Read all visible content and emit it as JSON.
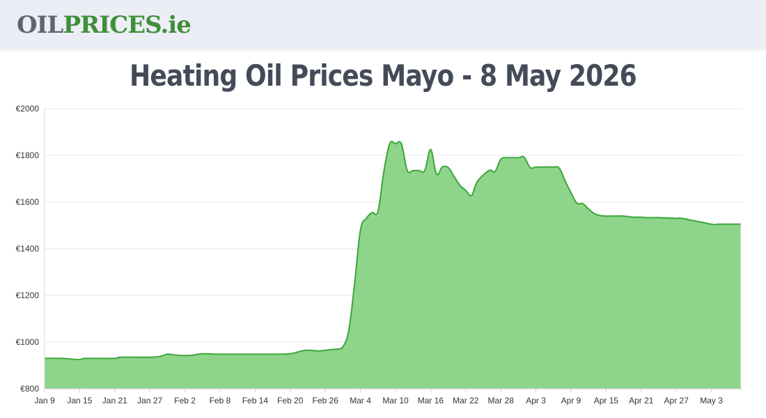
{
  "header": {
    "logo": {
      "part1": "OIL",
      "part2": "PRICES",
      "part3": ".ie"
    }
  },
  "page": {
    "title": "Heating Oil Prices Mayo - 8 May 2026"
  },
  "colors": {
    "fill": "#8fd48b",
    "line": "#3aa63a",
    "grid": "#e6e6e6"
  },
  "chart_data": {
    "type": "area",
    "title": "Heating Oil Prices Mayo - 8 May 2026",
    "xlabel": "",
    "ylabel": "",
    "ylim": [
      800,
      2000
    ],
    "yticks": [
      800,
      1000,
      1200,
      1400,
      1600,
      1800,
      2000
    ],
    "ytick_labels": [
      "€800",
      "€1000",
      "€1200",
      "€1400",
      "€1600",
      "€1800",
      "€2000"
    ],
    "xtick_labels": [
      "Jan 9",
      "Jan 15",
      "Jan 21",
      "Jan 27",
      "Feb 2",
      "Feb 8",
      "Feb 14",
      "Feb 20",
      "Feb 26",
      "Mar 4",
      "Mar 10",
      "Mar 16",
      "Mar 22",
      "Mar 28",
      "Apr 3",
      "Apr 9",
      "Apr 15",
      "Apr 21",
      "Apr 27",
      "May 3"
    ],
    "grid": true,
    "legend": "none",
    "series": [
      {
        "x": [
          "Jan 9",
          "Jan 12",
          "Jan 15",
          "Jan 16",
          "Jan 21",
          "Jan 22",
          "Jan 27",
          "Jan 29",
          "Jan 30",
          "Feb 1",
          "Feb 3",
          "Feb 5",
          "Feb 8",
          "Feb 14",
          "Feb 18",
          "Feb 20",
          "Feb 22",
          "Feb 23",
          "Feb 25",
          "Feb 27",
          "Feb 28",
          "Mar 1",
          "Mar 2",
          "Mar 3",
          "Mar 4",
          "Mar 5",
          "Mar 6",
          "Mar 7",
          "Mar 8",
          "Mar 9",
          "Mar 10",
          "Mar 11",
          "Mar 12",
          "Mar 13",
          "Mar 14",
          "Mar 15",
          "Mar 16",
          "Mar 17",
          "Mar 18",
          "Mar 19",
          "Mar 20",
          "Mar 21",
          "Mar 22",
          "Mar 23",
          "Mar 24",
          "Mar 26",
          "Mar 27",
          "Mar 28",
          "Mar 29",
          "Mar 30",
          "Mar 31",
          "Apr 1",
          "Apr 2",
          "Apr 3",
          "Apr 4",
          "Apr 6",
          "Apr 7",
          "Apr 8",
          "Apr 9",
          "Apr 10",
          "Apr 11",
          "Apr 12",
          "Apr 13",
          "Apr 14",
          "Apr 15",
          "Apr 16",
          "Apr 17",
          "Apr 18",
          "Apr 19",
          "Apr 20",
          "Apr 21",
          "Apr 22",
          "Apr 24",
          "Apr 27",
          "Apr 28",
          "May 3",
          "May 4",
          "May 5",
          "May 6",
          "May 7",
          "May 8"
        ],
        "values": [
          930,
          930,
          925,
          930,
          930,
          935,
          935,
          940,
          948,
          943,
          943,
          950,
          948,
          948,
          948,
          950,
          962,
          965,
          962,
          968,
          970,
          980,
          1050,
          1250,
          1480,
          1530,
          1555,
          1560,
          1730,
          1850,
          1850,
          1850,
          1735,
          1735,
          1735,
          1735,
          1825,
          1720,
          1750,
          1748,
          1710,
          1672,
          1650,
          1628,
          1688,
          1735,
          1730,
          1783,
          1790,
          1790,
          1790,
          1792,
          1748,
          1750,
          1750,
          1750,
          1745,
          1690,
          1640,
          1595,
          1593,
          1570,
          1550,
          1542,
          1540,
          1540,
          1540,
          1540,
          1537,
          1535,
          1535,
          1533,
          1533,
          1530,
          1530,
          1505,
          1505,
          1505,
          1505,
          1505,
          1505
        ]
      }
    ]
  }
}
